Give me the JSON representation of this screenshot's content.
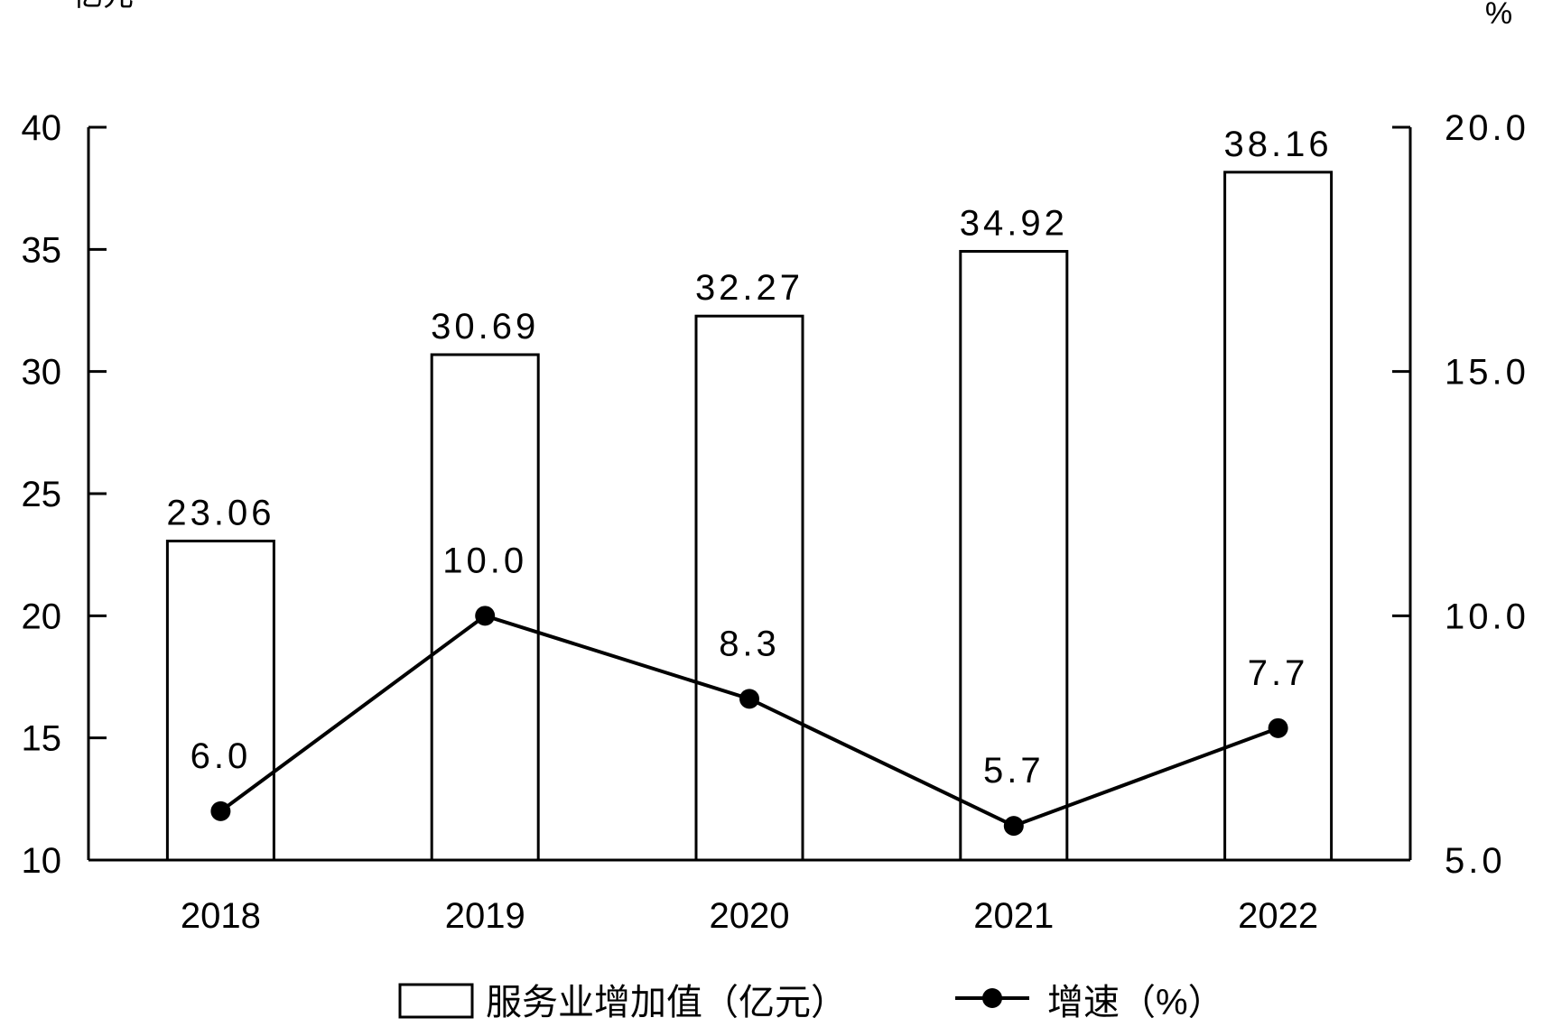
{
  "chart_data": {
    "type": "bar",
    "categories": [
      "2018",
      "2019",
      "2020",
      "2021",
      "2022"
    ],
    "left_unit": "亿元",
    "right_unit": "%",
    "left_axis": {
      "ylim": [
        10,
        40
      ],
      "ticks": [
        "10",
        "15",
        "20",
        "25",
        "30",
        "35",
        "40"
      ]
    },
    "right_axis": {
      "ylim": [
        5.0,
        20.0
      ],
      "ticks": [
        "5.0",
        "10.0",
        "15.0",
        "20.0"
      ]
    },
    "series": [
      {
        "name": "服务业增加值（亿元）",
        "type": "bar",
        "axis": "left",
        "values": [
          23.06,
          30.69,
          32.27,
          34.92,
          38.16
        ],
        "labels": [
          "23.06",
          "30.69",
          "32.27",
          "34.92",
          "38.16"
        ]
      },
      {
        "name": "增速（%）",
        "type": "line",
        "axis": "right",
        "values": [
          6.0,
          10.0,
          8.3,
          5.7,
          7.7
        ],
        "labels": [
          "6.0",
          "10.0",
          "8.3",
          "5.7",
          "7.7"
        ]
      }
    ],
    "legend_position": "bottom",
    "grid": false,
    "colors": {
      "bar_fill": "#ffffff",
      "bar_stroke": "#000000",
      "line": "#000000"
    }
  }
}
